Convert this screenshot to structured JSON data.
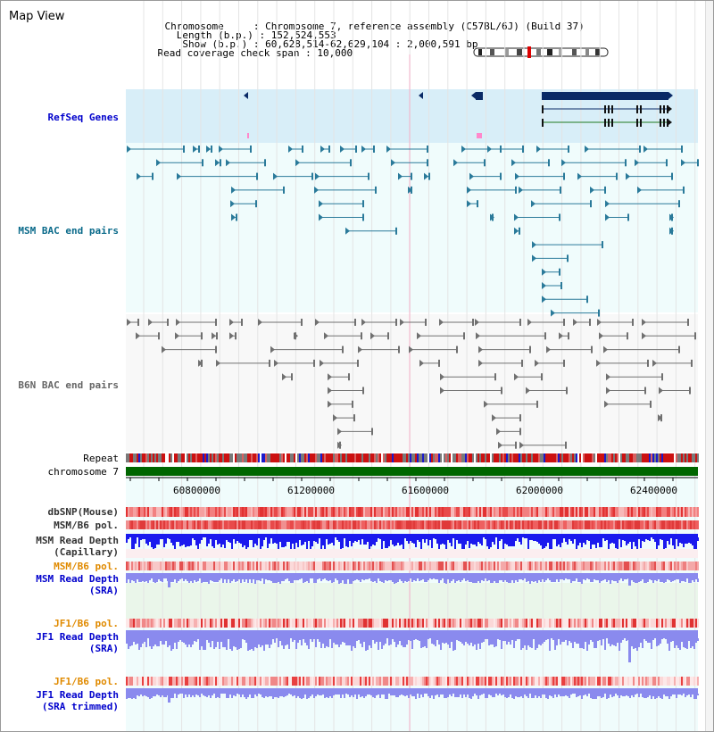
{
  "title": "Map View",
  "info": {
    "chromosome_key": "Chromosome",
    "chromosome_val": "Chromosome 7, reference assembly (C57BL/6J) (Build 37)",
    "length_key": "Length (b.p.)",
    "length_val": "152,524,553",
    "show_key": "Show (b.p.)",
    "show_val": "60,628,514-62,629,104 : 2,000,591 bp",
    "span_key": "Read coverage check span",
    "span_val": "10,000"
  },
  "tracks": {
    "refseq": "RefSeq Genes",
    "msm_bac": "MSM BAC end pairs",
    "b6n_bac": "B6N BAC end pairs",
    "repeat": "Repeat",
    "chromosome": "chromosome 7",
    "dbsnp": "dbSNP(Mouse)",
    "msm_b6_pol_1": "MSM/B6 pol.",
    "msm_read_depth_cap_1": "MSM Read Depth",
    "msm_read_depth_cap_2": "(Capillary)",
    "msm_b6_pol_2": "MSM/B6 pol.",
    "msm_read_depth_sra_1": "MSM Read Depth",
    "msm_read_depth_sra_2": "(SRA)",
    "jf1_b6_pol_1": "JF1/B6 pol.",
    "jf1_read_depth_sra_1": "JF1 Read Depth",
    "jf1_read_depth_sra_2": "(SRA)",
    "jf1_b6_pol_2": "JF1/B6 pol.",
    "jf1_read_depth_trim_1": "JF1 Read Depth",
    "jf1_read_depth_trim_2": "(SRA trimmed)"
  },
  "axis": {
    "ticks": [
      "60800000",
      "61200000",
      "61600000",
      "62000000",
      "62400000"
    ],
    "range_start": 60628514,
    "range_end": 62629104
  },
  "colors": {
    "refseq_bg": "#d8eef8",
    "track_bg": "#f0fcfc",
    "msm_bac": "#2a7a9a",
    "b6n_bac": "#707070",
    "gene": "#0a2a66",
    "label_blue": "#0000cc",
    "label_orange": "#e08a00",
    "label_teal": "#0a6a8a",
    "chrom_green": "#006600",
    "depth_blue": "#1a1aee",
    "depth_light": "#8a8aee"
  }
}
